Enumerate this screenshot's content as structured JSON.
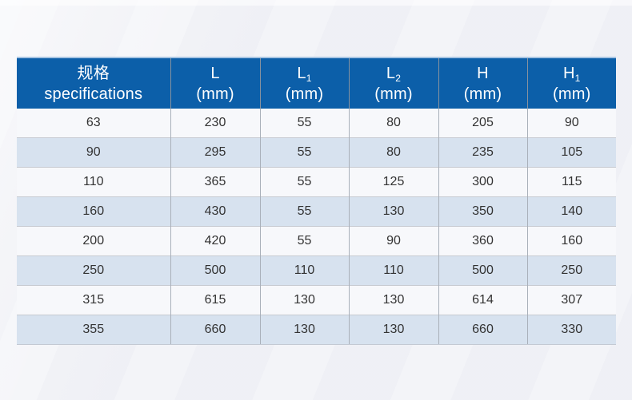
{
  "page": {
    "background_color": "#f0f1f6"
  },
  "chart_data": {
    "type": "table",
    "title": "",
    "columns": [
      "规格 specifications",
      "L (mm)",
      "L1 (mm)",
      "L2 (mm)",
      "H (mm)",
      "H1 (mm)"
    ],
    "rows": [
      [
        "63",
        "230",
        "55",
        "80",
        "205",
        "90"
      ],
      [
        "90",
        "295",
        "55",
        "80",
        "235",
        "105"
      ],
      [
        "110",
        "365",
        "55",
        "125",
        "300",
        "115"
      ],
      [
        "160",
        "430",
        "55",
        "130",
        "350",
        "140"
      ],
      [
        "200",
        "420",
        "55",
        "90",
        "360",
        "160"
      ],
      [
        "250",
        "500",
        "110",
        "110",
        "500",
        "250"
      ],
      [
        "315",
        "615",
        "130",
        "130",
        "614",
        "307"
      ],
      [
        "355",
        "660",
        "130",
        "130",
        "660",
        "330"
      ]
    ]
  },
  "table": {
    "header": {
      "background_color": "#0c5fa9",
      "text_color": "#ffffff",
      "top_border_color": "#a8c5e3",
      "columns": [
        {
          "line1": "规格",
          "sub": "",
          "line2": "specifications"
        },
        {
          "line1": "L",
          "sub": "",
          "line2": "(mm)"
        },
        {
          "line1": "L",
          "sub": "1",
          "line2": "(mm)"
        },
        {
          "line1": "L",
          "sub": "2",
          "line2": "(mm)"
        },
        {
          "line1": "H",
          "sub": "",
          "line2": "(mm)"
        },
        {
          "line1": "H",
          "sub": "1",
          "line2": "(mm)"
        }
      ]
    },
    "row_colors": {
      "odd": "#f7f8fb",
      "even": "#d7e2ef"
    }
  }
}
